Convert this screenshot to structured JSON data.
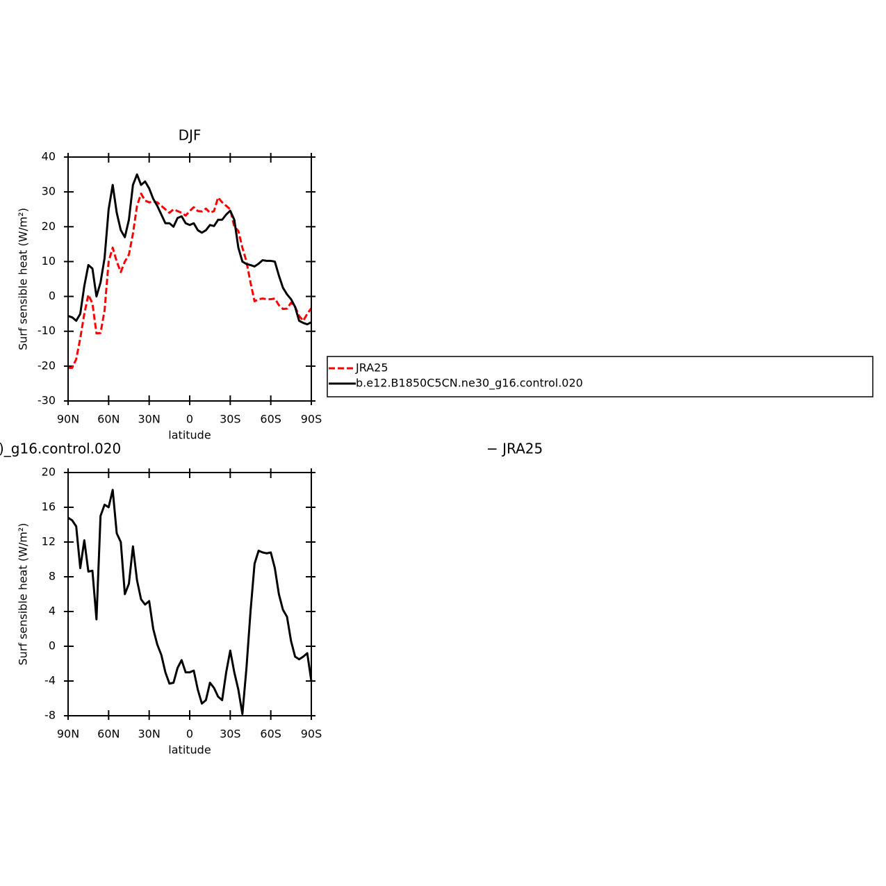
{
  "chart_data": [
    {
      "type": "line",
      "title": "DJF",
      "x_label": "latitude",
      "y_label": "Surf sensible heat (W/m²)",
      "x": [
        90,
        87,
        84,
        81,
        78,
        75,
        72,
        69,
        66,
        63,
        60,
        57,
        54,
        51,
        48,
        45,
        42,
        39,
        36,
        33,
        30,
        27,
        24,
        21,
        18,
        15,
        12,
        9,
        6,
        3,
        0,
        -3,
        -6,
        -9,
        -12,
        -15,
        -18,
        -21,
        -24,
        -27,
        -30,
        -33,
        -36,
        -39,
        -42,
        -45,
        -48,
        -51,
        -54,
        -57,
        -60,
        -63,
        -66,
        -69,
        -72,
        -75,
        -78,
        -81,
        -84,
        -87,
        -90
      ],
      "xlim": [
        90,
        -90
      ],
      "xticks": [
        {
          "value": 90,
          "label": "90N"
        },
        {
          "value": 60,
          "label": "60N"
        },
        {
          "value": 30,
          "label": "30N"
        },
        0,
        {
          "value": -30,
          "label": "30S"
        },
        {
          "value": -60,
          "label": "60S"
        },
        {
          "value": -90,
          "label": "90S"
        }
      ],
      "ylim": [
        -30,
        40
      ],
      "yticks": [
        -30,
        -20,
        -10,
        0,
        10,
        20,
        30,
        40
      ],
      "legend": "right",
      "series": [
        {
          "name": "JRA25",
          "color": "#ff0000",
          "line_style": "dashed",
          "values": [
            -20.5,
            -20.5,
            -18,
            -12,
            -5,
            0.5,
            -2,
            -10.6,
            -10.5,
            -4,
            10,
            14,
            10,
            7,
            10,
            12,
            18,
            26,
            29.5,
            27.5,
            27,
            27.2,
            27,
            26,
            25,
            24,
            25,
            24.5,
            24,
            23.2,
            24.5,
            25.6,
            24.5,
            24.4,
            25.2,
            24,
            24.5,
            28.4,
            27,
            26,
            25,
            20,
            18.8,
            14,
            10,
            4,
            -1.4,
            -0.8,
            -0.6,
            -0.8,
            -0.8,
            -0.6,
            -2.5,
            -3.6,
            -3.5,
            -1.8,
            -3,
            -5.6,
            -7,
            -5,
            -3.4
          ]
        },
        {
          "name": "b.e12.B1850C5CN.ne30_g16.control.020",
          "color": "#000000",
          "line_style": "solid",
          "values": [
            -5.6,
            -6,
            -7,
            -5,
            3,
            9,
            8,
            0,
            4,
            11,
            25,
            32,
            24,
            19,
            17,
            22,
            32,
            35,
            32,
            33,
            31,
            28,
            26,
            23.5,
            21,
            21,
            20,
            22.5,
            23,
            21,
            20.5,
            21,
            19,
            18.3,
            19,
            20.5,
            20.2,
            22,
            22,
            23.5,
            24.6,
            22,
            14,
            10,
            9.3,
            9,
            8.6,
            9.4,
            10.4,
            10.2,
            10.2,
            10,
            6,
            2.5,
            0.6,
            -0.8,
            -3,
            -7,
            -7.6,
            -8,
            -7.4
          ]
        }
      ]
    },
    {
      "type": "line",
      "title_parts": [
        ")_g16.control.020",
        "− JRA25"
      ],
      "x_label": "latitude",
      "y_label": "Surf sensible heat (W/m²)",
      "x": [
        90,
        87,
        84,
        81,
        78,
        75,
        72,
        69,
        66,
        63,
        60,
        57,
        54,
        51,
        48,
        45,
        42,
        39,
        36,
        33,
        30,
        27,
        24,
        21,
        18,
        15,
        12,
        9,
        6,
        3,
        0,
        -3,
        -6,
        -9,
        -12,
        -15,
        -18,
        -21,
        -24,
        -27,
        -30,
        -33,
        -36,
        -39,
        -42,
        -45,
        -48,
        -51,
        -54,
        -57,
        -60,
        -63,
        -66,
        -69,
        -72,
        -75,
        -78,
        -81,
        -84,
        -87,
        -90
      ],
      "xlim": [
        90,
        -90
      ],
      "xticks": [
        {
          "value": 90,
          "label": "90N"
        },
        {
          "value": 60,
          "label": "60N"
        },
        {
          "value": 30,
          "label": "30N"
        },
        0,
        {
          "value": -30,
          "label": "30S"
        },
        {
          "value": -60,
          "label": "60S"
        },
        {
          "value": -90,
          "label": "90S"
        }
      ],
      "ylim": [
        -8,
        20
      ],
      "yticks": [
        -8,
        -4,
        0,
        4,
        8,
        12,
        16,
        20
      ],
      "series": [
        {
          "color": "#000000",
          "line_style": "solid",
          "values": [
            14.8,
            14.5,
            13.8,
            9,
            12.2,
            8.6,
            8.7,
            3.1,
            15,
            16.3,
            16,
            18,
            13,
            12,
            6,
            7.2,
            11.5,
            7.6,
            5.4,
            4.8,
            5.2,
            2,
            0.2,
            -1,
            -3,
            -4.3,
            -4.2,
            -2.5,
            -1.6,
            -3,
            -3,
            -2.8,
            -5,
            -6.6,
            -6.2,
            -4.2,
            -4.8,
            -5.8,
            -6.2,
            -3,
            -0.5,
            -3,
            -5,
            -7.8,
            -2.5,
            4,
            9.5,
            11,
            10.8,
            10.7,
            10.8,
            9,
            6,
            4.2,
            3.4,
            0.6,
            -1.2,
            -1.5,
            -1.2,
            -0.8,
            -4
          ]
        }
      ]
    }
  ]
}
